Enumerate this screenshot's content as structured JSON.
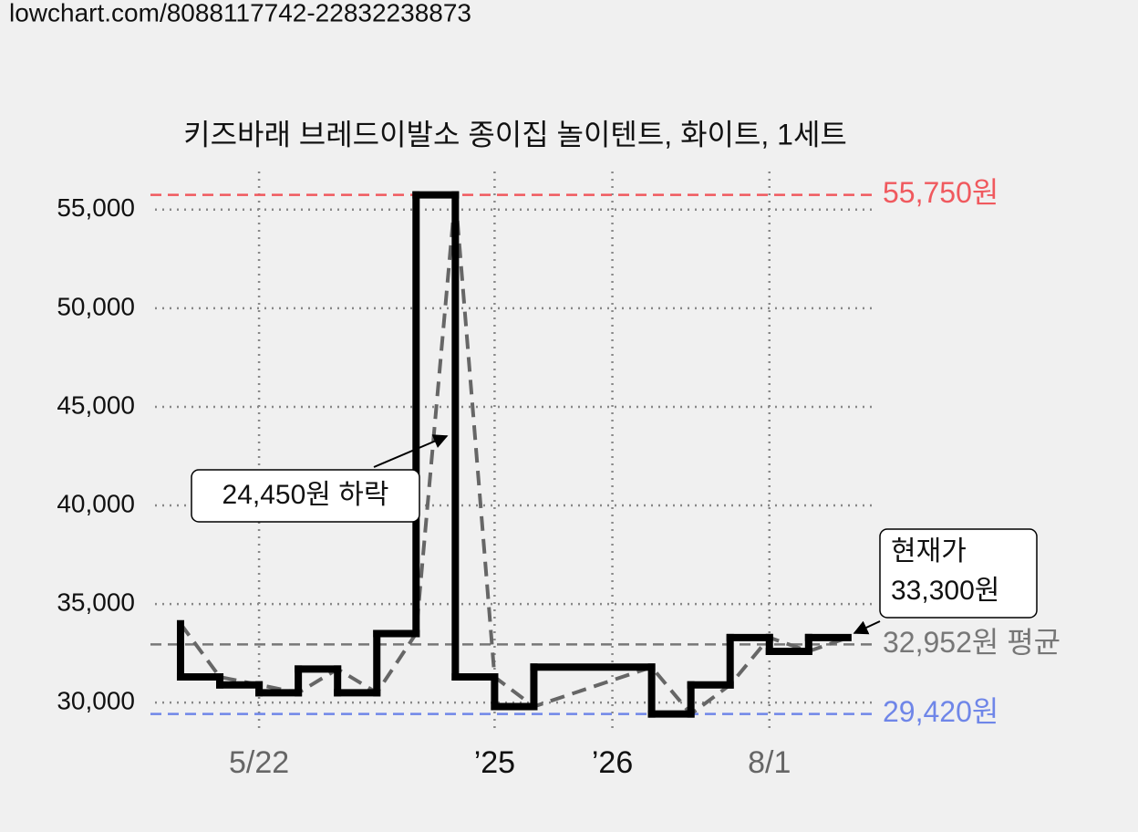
{
  "header": {
    "url": "lowchart.com/8088117742-22832238873"
  },
  "chart_data": {
    "type": "step-price",
    "title": "키즈바래 브레드이발소 종이집 놀이텐트, 화이트, 1세트",
    "x": [
      0,
      1,
      2,
      3,
      4,
      5,
      6,
      7,
      8,
      9,
      12,
      13,
      14,
      15,
      16,
      17
    ],
    "series": [
      {
        "color": "#000000",
        "values": [
          34000,
          31300,
          30900,
          30500,
          31700,
          30500,
          33500,
          55750,
          31300,
          29800,
          31800,
          29420,
          30900,
          33300,
          32600,
          33300
        ]
      }
    ],
    "trend_color": "#666666",
    "xlim": [
      -0.65,
      17.7
    ],
    "xticks": [
      {
        "value": 2,
        "label": "5/22",
        "color": "#666666"
      },
      {
        "value": 8,
        "label": "’25",
        "color": "#111111"
      },
      {
        "value": 11,
        "label": "’26",
        "color": "#111111"
      },
      {
        "value": 15,
        "label": "8/1",
        "color": "#666666"
      }
    ],
    "ylim": [
      28619,
      56934
    ],
    "yticks": [
      {
        "value": 30000,
        "label": "30,000"
      },
      {
        "value": 35000,
        "label": "35,000"
      },
      {
        "value": 40000,
        "label": "40,000"
      },
      {
        "value": 45000,
        "label": "45,000"
      },
      {
        "value": 50000,
        "label": "50,000"
      },
      {
        "value": 55000,
        "label": "55,000"
      }
    ],
    "grid": true,
    "reference_lines": [
      {
        "value": 55750,
        "label": "55,750원",
        "color": "#f0595e"
      },
      {
        "value": 32952,
        "label": "32,952원 평균",
        "color": "#777777"
      },
      {
        "value": 29420,
        "label": "29,420원",
        "color": "#6f86e8"
      }
    ],
    "annotations": [
      {
        "text": "24,450원 하락"
      },
      {
        "lines": [
          "현재가",
          "33,300원"
        ]
      }
    ]
  }
}
